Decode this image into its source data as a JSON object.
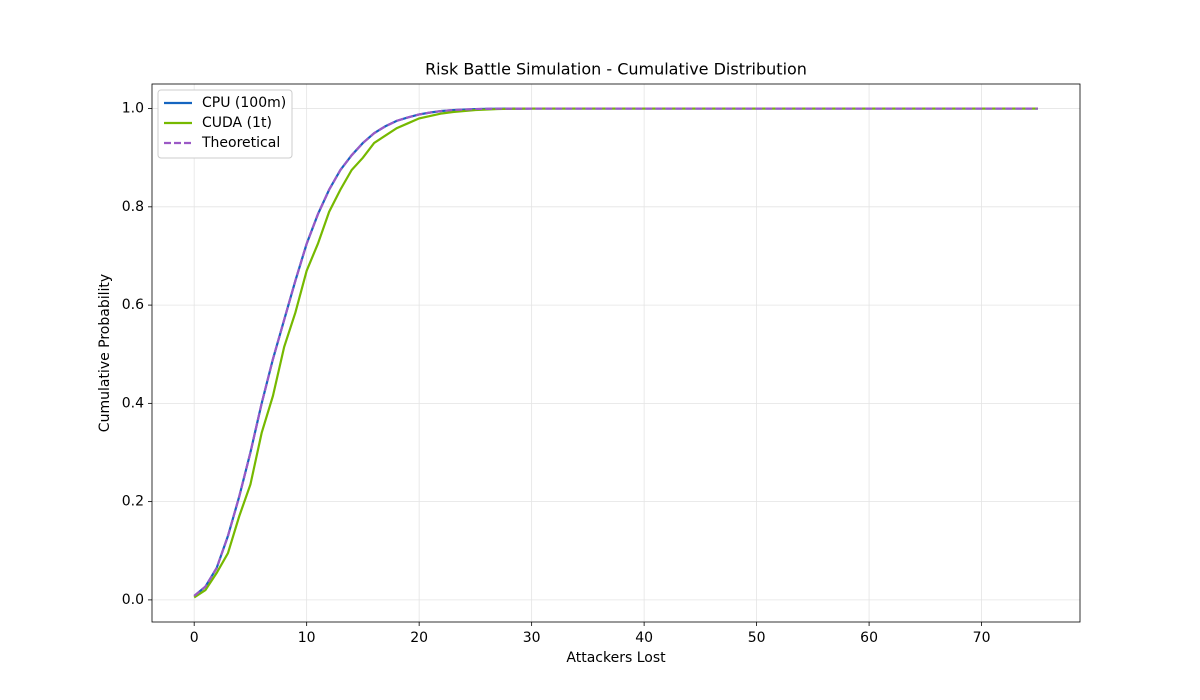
{
  "chart_data": {
    "type": "line",
    "title": "Risk Battle Simulation - Cumulative Distribution",
    "x_label": "Attackers Lost",
    "y_label": "Cumulative Probability",
    "x": [
      0,
      1,
      2,
      3,
      4,
      5,
      6,
      7,
      8,
      9,
      10,
      11,
      12,
      13,
      14,
      15,
      16,
      17,
      18,
      19,
      20,
      21,
      22,
      23,
      24,
      25,
      26,
      27,
      28,
      29,
      30,
      31,
      32,
      33,
      34,
      35,
      36,
      37,
      38,
      39,
      40,
      41,
      42,
      43,
      44,
      45,
      46,
      47,
      48,
      49,
      50,
      51,
      52,
      53,
      54,
      55,
      56,
      57,
      58,
      59,
      60,
      61,
      62,
      63,
      64,
      65,
      66,
      67,
      68,
      69,
      70,
      71,
      72,
      73,
      74,
      75
    ],
    "series": [
      {
        "name": "CPU (100m)",
        "color": "#1565c0",
        "linestyle": "solid",
        "values": [
          0.008,
          0.027,
          0.065,
          0.13,
          0.21,
          0.3,
          0.4,
          0.49,
          0.57,
          0.65,
          0.725,
          0.785,
          0.835,
          0.875,
          0.905,
          0.93,
          0.95,
          0.964,
          0.975,
          0.982,
          0.988,
          0.992,
          0.995,
          0.997,
          0.998,
          0.999,
          0.9994,
          0.9997,
          0.9998,
          0.9999,
          1,
          1,
          1,
          1,
          1,
          1,
          1,
          1,
          1,
          1,
          1,
          1,
          1,
          1,
          1,
          1,
          1,
          1,
          1,
          1,
          1,
          1,
          1,
          1,
          1,
          1,
          1,
          1,
          1,
          1,
          1,
          1,
          1,
          1,
          1,
          1,
          1,
          1,
          1,
          1,
          1,
          1,
          1,
          1,
          1,
          1
        ]
      },
      {
        "name": "CUDA (1t)",
        "color": "#76b900",
        "linestyle": "solid",
        "values": [
          0.005,
          0.02,
          0.055,
          0.095,
          0.17,
          0.235,
          0.34,
          0.415,
          0.515,
          0.585,
          0.67,
          0.725,
          0.79,
          0.835,
          0.875,
          0.9,
          0.93,
          0.945,
          0.96,
          0.97,
          0.98,
          0.985,
          0.99,
          0.993,
          0.995,
          0.997,
          0.998,
          0.999,
          0.9995,
          0.9998,
          1,
          1,
          1,
          1,
          1,
          1,
          1,
          1,
          1,
          1,
          1,
          1,
          1,
          1,
          1,
          1,
          1,
          1,
          1,
          1,
          1,
          1,
          1,
          1,
          1,
          1,
          1,
          1,
          1,
          1,
          1,
          1,
          1,
          1,
          1,
          1,
          1,
          1,
          1,
          1,
          1,
          1,
          1,
          1,
          1,
          1
        ]
      },
      {
        "name": "Theoretical",
        "color": "#9b59c6",
        "linestyle": "dashed",
        "values": [
          0.008,
          0.027,
          0.065,
          0.13,
          0.21,
          0.3,
          0.4,
          0.49,
          0.57,
          0.65,
          0.725,
          0.785,
          0.835,
          0.875,
          0.905,
          0.93,
          0.95,
          0.964,
          0.975,
          0.982,
          0.988,
          0.992,
          0.995,
          0.997,
          0.998,
          0.999,
          0.9994,
          0.9997,
          0.9998,
          0.9999,
          1,
          1,
          1,
          1,
          1,
          1,
          1,
          1,
          1,
          1,
          1,
          1,
          1,
          1,
          1,
          1,
          1,
          1,
          1,
          1,
          1,
          1,
          1,
          1,
          1,
          1,
          1,
          1,
          1,
          1,
          1,
          1,
          1,
          1,
          1,
          1,
          1,
          1,
          1,
          1,
          1,
          1,
          1,
          1,
          1,
          1
        ]
      }
    ],
    "xlim": [
      -3.75,
      78.75
    ],
    "ylim": [
      -0.045,
      1.05
    ],
    "xticks": [
      0,
      10,
      20,
      30,
      40,
      50,
      60,
      70
    ],
    "yticks": [
      {
        "value": 0,
        "label": "0.0"
      },
      0.2,
      0.4,
      0.6,
      0.8,
      {
        "value": 1,
        "label": "1.0"
      }
    ],
    "grid": true,
    "legend": "upper left"
  }
}
